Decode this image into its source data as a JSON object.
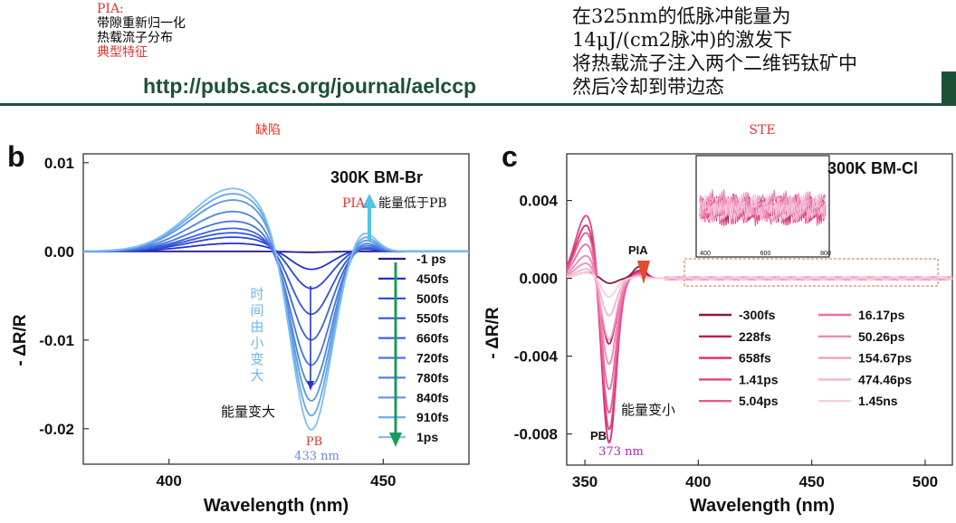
{
  "header": {
    "left_notes": {
      "line1": "PIA:",
      "line2": "带隙重新归一化",
      "line3": "热载流子分布",
      "line4": "典型特征"
    },
    "url": "http://pubs.acs.org/journal/aelccp",
    "right_notes": [
      "在325nm的低脉冲能量为",
      "14μJ/(cm2脉冲)的激发下",
      "将热载流子注入两个二维钙钛矿中",
      "然后冷却到带边态"
    ]
  },
  "colors": {
    "brand_green": "#1b5236",
    "note_red": "#e4342b",
    "arrow_teal": "#4fc3e8",
    "arrow_green": "#1e9a5a",
    "time_text": "#6fb8ea"
  },
  "chart_data": [
    {
      "panel": "b",
      "type": "line",
      "caption": "缺陷",
      "title": "300K BM-Br",
      "xlabel": "Wavelength (nm)",
      "ylabel": "- ΔR/R",
      "xlim": [
        380,
        470
      ],
      "ylim": [
        -0.024,
        0.011
      ],
      "xticks": [
        400,
        450
      ],
      "yticks": [
        {
          "v": 0.01,
          "label": "0.01"
        },
        {
          "v": 0.0,
          "label": "0.00"
        },
        {
          "v": -0.01,
          "label": "-0.01"
        },
        {
          "v": -0.02,
          "label": "-0.02"
        }
      ],
      "annotations": {
        "pia": "PIA",
        "pia_note": "能量低于PB",
        "time_note": "时间由小变大",
        "energy_note": "能量变大",
        "pb": "PB",
        "pb_nm": "433 nm"
      },
      "series": [
        {
          "name": "-1 ps",
          "color": "#2a1a8c",
          "peak": 0.0,
          "pb": -0.0001,
          "pia": 0.0
        },
        {
          "name": "450fs",
          "color": "#2335c8",
          "peak": 0.0009,
          "pb": -0.0022,
          "pia": 0.0003
        },
        {
          "name": "500fs",
          "color": "#2b48d6",
          "peak": 0.0016,
          "pb": -0.0045,
          "pia": 0.0004
        },
        {
          "name": "550fs",
          "color": "#3356dc",
          "peak": 0.0021,
          "pb": -0.0075,
          "pia": 0.0005
        },
        {
          "name": "660fs",
          "color": "#3b64e0",
          "peak": 0.0026,
          "pb": -0.0105,
          "pia": 0.0006
        },
        {
          "name": "720fs",
          "color": "#4574e2",
          "peak": 0.0034,
          "pb": -0.0135,
          "pia": 0.0009
        },
        {
          "name": "780fs",
          "color": "#4f84e4",
          "peak": 0.0045,
          "pb": -0.016,
          "pia": 0.0012
        },
        {
          "name": "840fs",
          "color": "#5a96e6",
          "peak": 0.0058,
          "pb": -0.018,
          "pia": 0.0016
        },
        {
          "name": "910fs",
          "color": "#67a8ea",
          "peak": 0.0065,
          "pb": -0.0198,
          "pia": 0.002
        },
        {
          "name": "1ps",
          "color": "#7cc0ef",
          "peak": 0.0071,
          "pb": -0.0215,
          "pia": 0.0025
        }
      ]
    },
    {
      "panel": "c",
      "type": "line",
      "caption": "STE",
      "title": "300K BM-Cl",
      "xlabel": "Wavelength (nm)",
      "ylabel": "- ΔR/R",
      "xlim": [
        342,
        512
      ],
      "ylim": [
        -0.0096,
        0.0064
      ],
      "xticks": [
        350,
        400,
        450,
        500
      ],
      "yticks": [
        {
          "v": 0.004,
          "label": "0.004"
        },
        {
          "v": 0.0,
          "label": "0.000"
        },
        {
          "v": -0.004,
          "label": "-0.004"
        },
        {
          "v": -0.008,
          "label": "-0.008"
        }
      ],
      "annotations": {
        "pia": "PIA",
        "energy_note": "能量变小",
        "pb": "PB",
        "pb_nm": "373 nm"
      },
      "inset": {
        "xticks": [
          400,
          600,
          800
        ]
      },
      "series": [
        {
          "name": "-300fs",
          "color": "#8a1a3c",
          "pos": 0.0003,
          "pb": -0.0003,
          "pia": 0.0006
        },
        {
          "name": "228fs",
          "color": "#c21a5a",
          "pos": 0.0008,
          "pb": -0.0035,
          "pia": 0.0004
        },
        {
          "name": "658fs",
          "color": "#dc2a6e",
          "pos": 0.0028,
          "pb": -0.0089,
          "pia": 0.0003
        },
        {
          "name": "1.41ps",
          "color": "#e04583",
          "pos": 0.0033,
          "pb": -0.0083,
          "pia": 0.0003
        },
        {
          "name": "5.04ps",
          "color": "#e65a93",
          "pos": 0.0024,
          "pb": -0.0073,
          "pia": 0.0002
        },
        {
          "name": "16.17ps",
          "color": "#ec6ea4",
          "pos": 0.0018,
          "pb": -0.006,
          "pia": 0.0002
        },
        {
          "name": "50.26ps",
          "color": "#ef86b4",
          "pos": 0.0012,
          "pb": -0.0046,
          "pia": 0.0002
        },
        {
          "name": "154.67ps",
          "color": "#f29dc3",
          "pos": 0.0008,
          "pb": -0.0033,
          "pia": 0.0001
        },
        {
          "name": "474.46ps",
          "color": "#f5b4d2",
          "pos": 0.0005,
          "pb": -0.002,
          "pia": 0.0001
        },
        {
          "name": "1.45ns",
          "color": "#f8cde2",
          "pos": 0.0003,
          "pb": -0.001,
          "pia": 0.0001
        }
      ]
    }
  ]
}
